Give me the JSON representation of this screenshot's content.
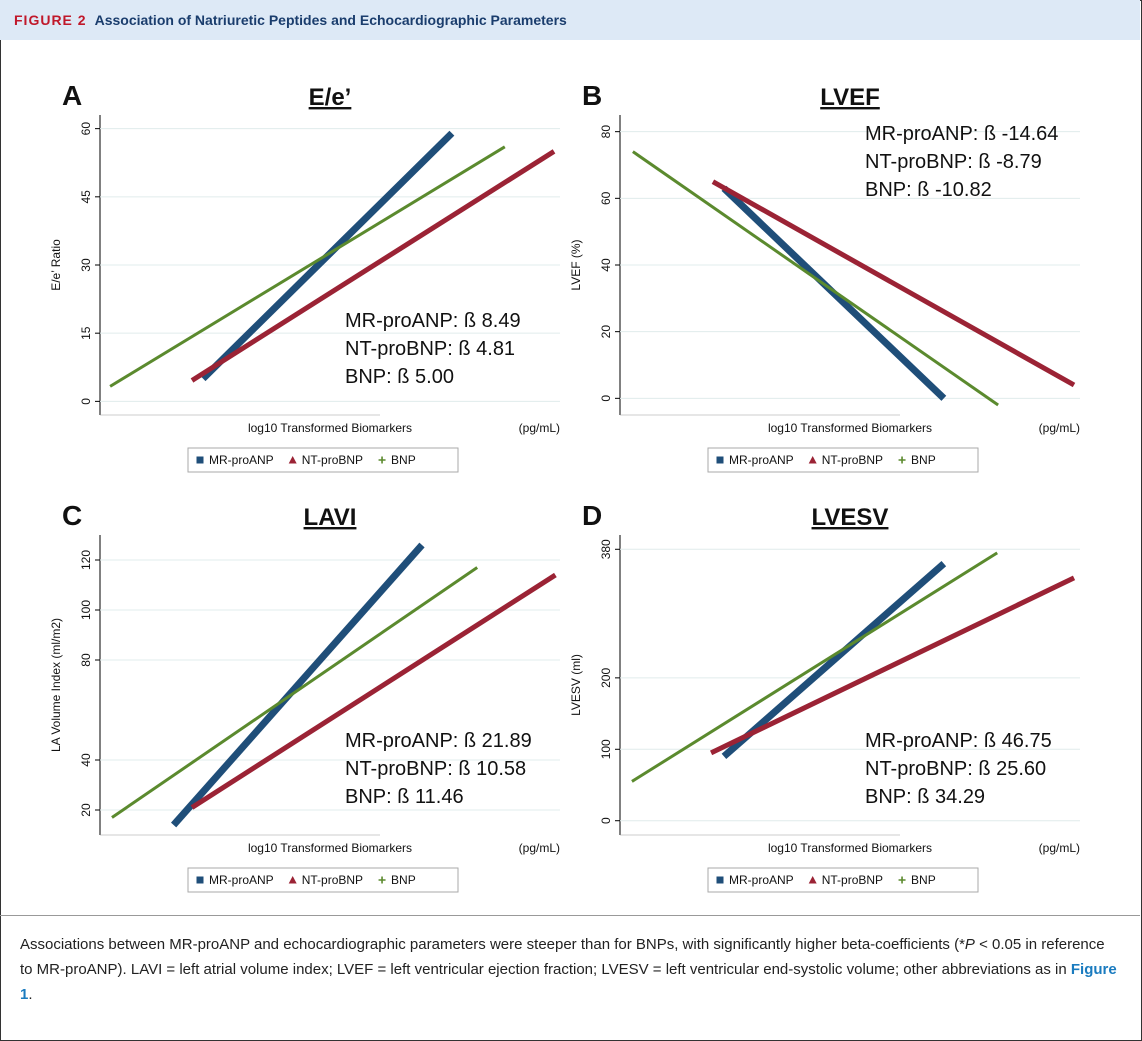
{
  "figure": {
    "number": "FIGURE 2",
    "title": "Association of Natriuretic Peptides and Echocardiographic Parameters"
  },
  "caption": [
    "Associations between MR-proANP and echocardiographic parameters were steeper than for BNPs, with significantly higher beta-coefficients (*",
    "P",
    " < 0.05 in reference to MR-proANP). LAVI = left atrial volume index; LVEF = left ventricular ejection fraction; LVESV = left ventricular end-systolic volume; other abbreviations as in ",
    "Figure 1",
    "."
  ],
  "chart_data": [
    {
      "type": "line",
      "label": "A",
      "title": "E/e’",
      "ylabel": "E/e’ Ratio",
      "xlabel": "log10 Transformed Biomarkers",
      "xunit": "(pg/mL)",
      "annotations": [
        "MR-proANP: ß 8.49",
        "NT-proBNP: ß 4.81",
        "BNP: ß 5.00"
      ],
      "annotation_corner": "lower right",
      "xlim": [
        0,
        100
      ],
      "ylim": [
        -3,
        63
      ],
      "yticks": [
        0,
        15,
        30,
        45,
        60
      ],
      "series": [
        {
          "name": "MR-proANP",
          "color": "#1f4e79",
          "marker": "square",
          "x": [
            22.4,
            76.5
          ],
          "values": [
            5,
            59
          ]
        },
        {
          "name": "NT-proBNP",
          "color": "#9b2335",
          "marker": "triangle",
          "x": [
            20,
            98.7
          ],
          "values": [
            4.6,
            55
          ]
        },
        {
          "name": "BNP",
          "color": "#5b8a2e",
          "marker": "plus",
          "x": [
            2.2,
            88
          ],
          "values": [
            3.3,
            56
          ]
        }
      ]
    },
    {
      "type": "line",
      "label": "B",
      "title": "LVEF",
      "ylabel": "LVEF (%)",
      "xlabel": "log10 Transformed Biomarkers",
      "xunit": "(pg/mL)",
      "annotations": [
        "MR-proANP: ß -14.64",
        "NT-proBNP: ß -8.79",
        "BNP: ß -10.82"
      ],
      "annotation_corner": "upper right",
      "xlim": [
        0,
        100
      ],
      "ylim": [
        -5,
        85
      ],
      "yticks": [
        0,
        20,
        40,
        60,
        80
      ],
      "series": [
        {
          "name": "MR-proANP",
          "color": "#1f4e79",
          "marker": "square",
          "x": [
            22.6,
            70.4
          ],
          "values": [
            63,
            0
          ]
        },
        {
          "name": "NT-proBNP",
          "color": "#9b2335",
          "marker": "triangle",
          "x": [
            20.2,
            98.7
          ],
          "values": [
            65,
            4
          ]
        },
        {
          "name": "BNP",
          "color": "#5b8a2e",
          "marker": "plus",
          "x": [
            2.8,
            82.2
          ],
          "values": [
            74,
            -2
          ]
        }
      ]
    },
    {
      "type": "line",
      "label": "C",
      "title": "LAVI",
      "ylabel": "LA Volume Index (ml/m2)",
      "xlabel": "log10 Transformed Biomarkers",
      "xunit": "(pg/mL)",
      "annotations": [
        "MR-proANP: ß 21.89",
        "NT-proBNP: ß 10.58",
        "BNP: ß 11.46"
      ],
      "annotation_corner": "lower right",
      "xlim": [
        0,
        100
      ],
      "ylim": [
        10,
        130
      ],
      "yticks": [
        20,
        40,
        80,
        100,
        120
      ],
      "series": [
        {
          "name": "MR-proANP",
          "color": "#1f4e79",
          "marker": "square",
          "x": [
            16,
            70
          ],
          "values": [
            14,
            126
          ]
        },
        {
          "name": "NT-proBNP",
          "color": "#9b2335",
          "marker": "triangle",
          "x": [
            20,
            99
          ],
          "values": [
            21,
            114
          ]
        },
        {
          "name": "BNP",
          "color": "#5b8a2e",
          "marker": "plus",
          "x": [
            2.6,
            82
          ],
          "values": [
            17,
            117
          ]
        }
      ]
    },
    {
      "type": "line",
      "label": "D",
      "title": "LVESV",
      "ylabel": "LVESV (ml)",
      "xlabel": "log10 Transformed Biomarkers",
      "xunit": "(pg/mL)",
      "annotations": [
        "MR-proANP: ß 46.75",
        "NT-proBNP: ß 25.60",
        "BNP: ß 34.29"
      ],
      "annotation_corner": "lower right",
      "xlim": [
        0,
        100
      ],
      "ylim": [
        -20,
        400
      ],
      "yticks": [
        0,
        100,
        200,
        380
      ],
      "series": [
        {
          "name": "MR-proANP",
          "color": "#1f4e79",
          "marker": "square",
          "x": [
            22.6,
            70.4
          ],
          "values": [
            90,
            360
          ]
        },
        {
          "name": "NT-proBNP",
          "color": "#9b2335",
          "marker": "triangle",
          "x": [
            19.8,
            98.7
          ],
          "values": [
            95,
            340
          ]
        },
        {
          "name": "BNP",
          "color": "#5b8a2e",
          "marker": "plus",
          "x": [
            2.6,
            82
          ],
          "values": [
            55,
            375
          ]
        }
      ]
    }
  ]
}
